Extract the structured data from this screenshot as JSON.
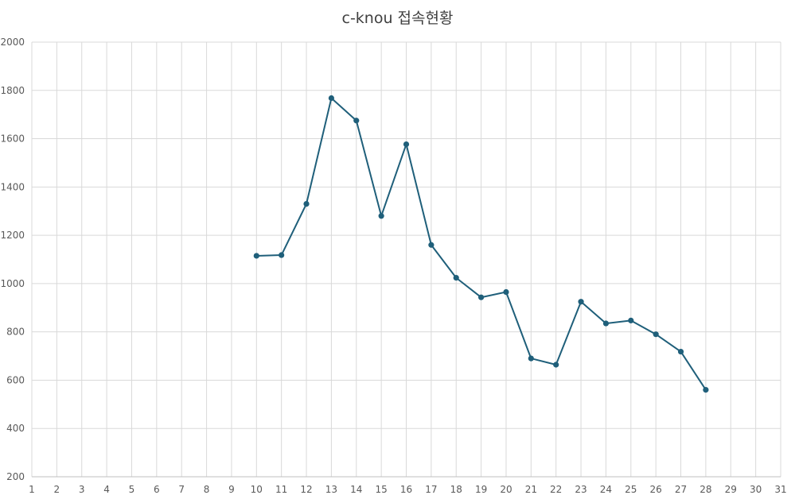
{
  "chart_data": {
    "type": "line",
    "title": "c-knou 접속현황",
    "xlabel": "",
    "ylabel": "",
    "x_categories": [
      "1",
      "2",
      "3",
      "4",
      "5",
      "6",
      "7",
      "8",
      "9",
      "10",
      "11",
      "12",
      "13",
      "14",
      "15",
      "16",
      "17",
      "18",
      "19",
      "20",
      "21",
      "22",
      "23",
      "24",
      "25",
      "26",
      "27",
      "28",
      "29",
      "30",
      "31"
    ],
    "ylim": [
      200,
      2000
    ],
    "y_ticks": [
      200,
      400,
      600,
      800,
      1000,
      1200,
      1400,
      1600,
      1800,
      2000
    ],
    "grid": true,
    "legend": "none",
    "series": [
      {
        "color": "#1f5f7a",
        "points": [
          {
            "x": "10",
            "y": 1115
          },
          {
            "x": "11",
            "y": 1118
          },
          {
            "x": "12",
            "y": 1330
          },
          {
            "x": "13",
            "y": 1768
          },
          {
            "x": "14",
            "y": 1675
          },
          {
            "x": "15",
            "y": 1280
          },
          {
            "x": "16",
            "y": 1577
          },
          {
            "x": "17",
            "y": 1160
          },
          {
            "x": "18",
            "y": 1024
          },
          {
            "x": "19",
            "y": 943
          },
          {
            "x": "20",
            "y": 965
          },
          {
            "x": "21",
            "y": 690
          },
          {
            "x": "22",
            "y": 664
          },
          {
            "x": "23",
            "y": 925
          },
          {
            "x": "24",
            "y": 835
          },
          {
            "x": "25",
            "y": 847
          },
          {
            "x": "26",
            "y": 790
          },
          {
            "x": "27",
            "y": 718
          },
          {
            "x": "28",
            "y": 560
          }
        ]
      }
    ]
  }
}
